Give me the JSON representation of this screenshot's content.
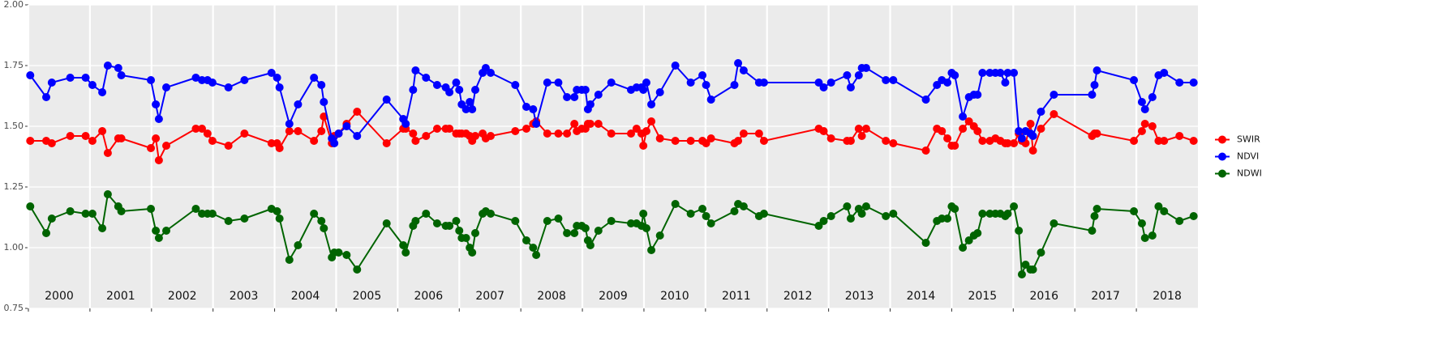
{
  "chart_data": {
    "type": "line",
    "legend": "right",
    "grid": true,
    "x": [
      2000.03,
      2000.29,
      2000.38,
      2000.68,
      2000.93,
      2001.04,
      2001.2,
      2001.29,
      2001.46,
      2001.51,
      2001.99,
      2002.07,
      2002.12,
      2002.24,
      2002.72,
      2002.82,
      2002.91,
      2002.99,
      2003.25,
      2003.51,
      2003.95,
      2004.04,
      2004.08,
      2004.24,
      2004.38,
      2004.64,
      2004.76,
      2004.8,
      2004.93,
      2004.97,
      2005.04,
      2005.17,
      2005.34,
      2005.82,
      2006.09,
      2006.13,
      2006.25,
      2006.29,
      2006.46,
      2006.64,
      2006.78,
      2006.84,
      2006.95,
      2007.0,
      2007.04,
      2007.11,
      2007.17,
      2007.21,
      2007.26,
      2007.38,
      2007.43,
      2007.51,
      2007.91,
      2008.09,
      2008.2,
      2008.25,
      2008.43,
      2008.61,
      2008.75,
      2008.87,
      2008.91,
      2008.99,
      2009.05,
      2009.09,
      2009.13,
      2009.26,
      2009.47,
      2009.79,
      2009.88,
      2009.96,
      2009.99,
      2010.04,
      2010.12,
      2010.26,
      2010.51,
      2010.76,
      2010.95,
      2011.01,
      2011.09,
      2011.47,
      2011.53,
      2011.62,
      2011.87,
      2011.95,
      2012.84,
      2012.92,
      2013.04,
      2013.3,
      2013.36,
      2013.49,
      2013.54,
      2013.61,
      2013.93,
      2014.05,
      2014.58,
      2014.76,
      2014.84,
      2014.93,
      2015.0,
      2015.05,
      2015.18,
      2015.28,
      2015.36,
      2015.42,
      2015.5,
      2015.62,
      2015.71,
      2015.79,
      2015.87,
      2015.91,
      2016.01,
      2016.09,
      2016.14,
      2016.2,
      2016.28,
      2016.32,
      2016.45,
      2016.66,
      2017.28,
      2017.32,
      2017.36,
      2017.96,
      2018.09,
      2018.14,
      2018.26,
      2018.36,
      2018.45,
      2018.7,
      2018.93
    ],
    "series": [
      {
        "name": "SWIR",
        "color": "#ff0000",
        "values": [
          1.44,
          1.44,
          1.43,
          1.46,
          1.46,
          1.44,
          1.48,
          1.39,
          1.45,
          1.45,
          1.41,
          1.45,
          1.36,
          1.42,
          1.49,
          1.49,
          1.47,
          1.44,
          1.42,
          1.47,
          1.43,
          1.43,
          1.41,
          1.48,
          1.48,
          1.44,
          1.48,
          1.54,
          1.43,
          1.46,
          1.47,
          1.51,
          1.56,
          1.43,
          1.49,
          1.49,
          1.47,
          1.44,
          1.46,
          1.49,
          1.49,
          1.49,
          1.47,
          1.47,
          1.47,
          1.47,
          1.46,
          1.44,
          1.46,
          1.47,
          1.45,
          1.46,
          1.48,
          1.49,
          1.51,
          1.52,
          1.47,
          1.47,
          1.47,
          1.51,
          1.48,
          1.49,
          1.49,
          1.51,
          1.51,
          1.51,
          1.47,
          1.47,
          1.49,
          1.47,
          1.42,
          1.48,
          1.52,
          1.45,
          1.44,
          1.44,
          1.44,
          1.43,
          1.45,
          1.43,
          1.44,
          1.47,
          1.47,
          1.44,
          1.49,
          1.48,
          1.45,
          1.44,
          1.44,
          1.49,
          1.46,
          1.49,
          1.44,
          1.43,
          1.4,
          1.49,
          1.48,
          1.45,
          1.42,
          1.42,
          1.49,
          1.52,
          1.5,
          1.48,
          1.44,
          1.44,
          1.45,
          1.44,
          1.43,
          1.43,
          1.43,
          1.47,
          1.44,
          1.43,
          1.51,
          1.4,
          1.49,
          1.55,
          1.46,
          1.47,
          1.47,
          1.44,
          1.48,
          1.51,
          1.5,
          1.44,
          1.44,
          1.46,
          1.44
        ]
      },
      {
        "name": "NDVI",
        "color": "#0000ff",
        "values": [
          1.71,
          1.62,
          1.68,
          1.7,
          1.7,
          1.67,
          1.64,
          1.75,
          1.74,
          1.71,
          1.69,
          1.59,
          1.53,
          1.66,
          1.7,
          1.69,
          1.69,
          1.68,
          1.66,
          1.69,
          1.72,
          1.7,
          1.66,
          1.51,
          1.59,
          1.7,
          1.67,
          1.6,
          1.45,
          1.43,
          1.47,
          1.5,
          1.46,
          1.61,
          1.53,
          1.51,
          1.65,
          1.73,
          1.7,
          1.67,
          1.66,
          1.64,
          1.68,
          1.65,
          1.59,
          1.57,
          1.6,
          1.57,
          1.65,
          1.72,
          1.74,
          1.72,
          1.67,
          1.58,
          1.57,
          1.51,
          1.68,
          1.68,
          1.62,
          1.62,
          1.65,
          1.65,
          1.65,
          1.57,
          1.59,
          1.63,
          1.68,
          1.65,
          1.66,
          1.66,
          1.65,
          1.68,
          1.59,
          1.64,
          1.75,
          1.68,
          1.71,
          1.67,
          1.61,
          1.67,
          1.76,
          1.73,
          1.68,
          1.68,
          1.68,
          1.66,
          1.68,
          1.71,
          1.66,
          1.71,
          1.74,
          1.74,
          1.69,
          1.69,
          1.61,
          1.67,
          1.69,
          1.68,
          1.72,
          1.71,
          1.54,
          1.62,
          1.63,
          1.63,
          1.72,
          1.72,
          1.72,
          1.72,
          1.68,
          1.72,
          1.72,
          1.48,
          1.45,
          1.48,
          1.47,
          1.46,
          1.56,
          1.63,
          1.63,
          1.67,
          1.73,
          1.69,
          1.6,
          1.57,
          1.62,
          1.71,
          1.72,
          1.68,
          1.68
        ]
      },
      {
        "name": "NDWI",
        "color": "#006400",
        "values": [
          1.17,
          1.06,
          1.12,
          1.15,
          1.14,
          1.14,
          1.08,
          1.22,
          1.17,
          1.15,
          1.16,
          1.07,
          1.04,
          1.07,
          1.16,
          1.14,
          1.14,
          1.14,
          1.11,
          1.12,
          1.16,
          1.15,
          1.12,
          0.95,
          1.01,
          1.14,
          1.11,
          1.08,
          0.96,
          0.98,
          0.98,
          0.97,
          0.91,
          1.1,
          1.01,
          0.98,
          1.09,
          1.11,
          1.14,
          1.1,
          1.09,
          1.09,
          1.11,
          1.07,
          1.04,
          1.04,
          1.0,
          0.98,
          1.06,
          1.14,
          1.15,
          1.14,
          1.11,
          1.03,
          1.0,
          0.97,
          1.11,
          1.12,
          1.06,
          1.06,
          1.09,
          1.09,
          1.08,
          1.03,
          1.01,
          1.07,
          1.11,
          1.1,
          1.1,
          1.09,
          1.14,
          1.08,
          0.99,
          1.05,
          1.18,
          1.14,
          1.16,
          1.13,
          1.1,
          1.15,
          1.18,
          1.17,
          1.13,
          1.14,
          1.09,
          1.11,
          1.13,
          1.17,
          1.12,
          1.16,
          1.14,
          1.17,
          1.13,
          1.14,
          1.02,
          1.11,
          1.12,
          1.12,
          1.17,
          1.16,
          1.0,
          1.03,
          1.05,
          1.06,
          1.14,
          1.14,
          1.14,
          1.14,
          1.13,
          1.14,
          1.17,
          1.07,
          0.89,
          0.93,
          0.91,
          0.91,
          0.98,
          1.1,
          1.07,
          1.13,
          1.16,
          1.15,
          1.1,
          1.04,
          1.05,
          1.17,
          1.15,
          1.11,
          1.13
        ]
      }
    ],
    "xlim": [
      2000,
      2019
    ],
    "xticks": [
      2000,
      2001,
      2002,
      2003,
      2004,
      2005,
      2006,
      2007,
      2008,
      2009,
      2010,
      2011,
      2012,
      2013,
      2014,
      2015,
      2016,
      2017,
      2018
    ],
    "ylim": [
      0.75,
      2.0
    ],
    "yticks": [
      {
        "value": 0.75,
        "label": "0.75"
      },
      {
        "value": 1.0,
        "label": "1.00"
      },
      {
        "value": 1.25,
        "label": "1.25"
      },
      {
        "value": 1.5,
        "label": "1.50"
      },
      {
        "value": 1.75,
        "label": "1.75"
      },
      {
        "value": 2.0,
        "label": "2.00"
      }
    ]
  }
}
